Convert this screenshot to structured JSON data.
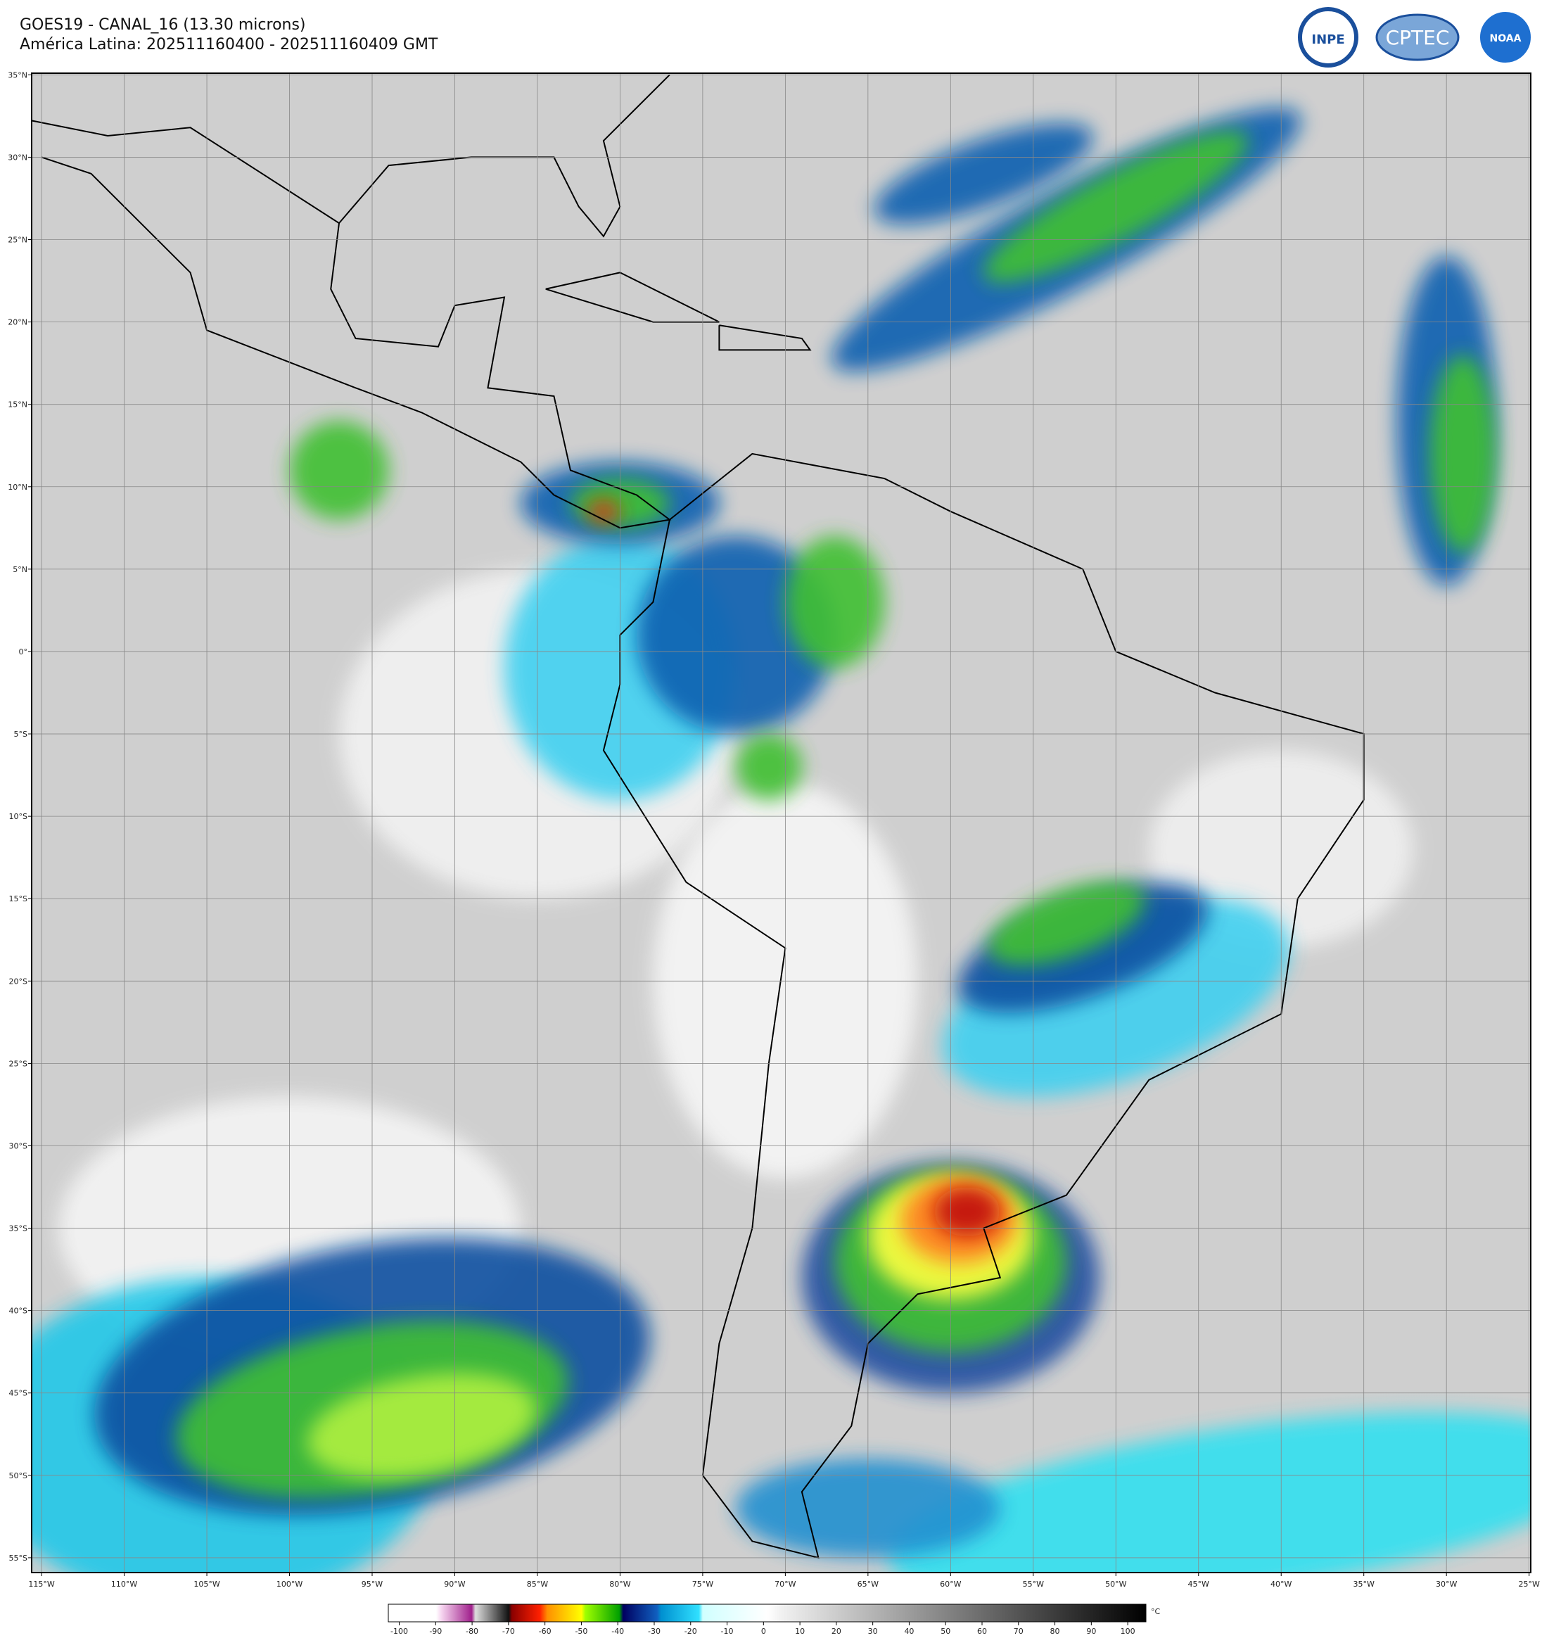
{
  "header": {
    "title": "GOES19 - CANAL_16 (13.30 microns)",
    "subtitle": "América Latina: 202511160400 - 202511160409 GMT"
  },
  "logos": [
    "INPE",
    "CPTEC",
    "NOAA"
  ],
  "map": {
    "xlim": [
      -115.6,
      -24.9
    ],
    "ylim": [
      -55.9,
      35.1
    ],
    "grid": true,
    "xticks": [
      {
        "value": -115,
        "label": "115°W"
      },
      {
        "value": -110,
        "label": "110°W"
      },
      {
        "value": -105,
        "label": "105°W"
      },
      {
        "value": -100,
        "label": "100°W"
      },
      {
        "value": -95,
        "label": "95°W"
      },
      {
        "value": -90,
        "label": "90°W"
      },
      {
        "value": -85,
        "label": "85°W"
      },
      {
        "value": -80,
        "label": "80°W"
      },
      {
        "value": -75,
        "label": "75°W"
      },
      {
        "value": -70,
        "label": "70°W"
      },
      {
        "value": -65,
        "label": "65°W"
      },
      {
        "value": -60,
        "label": "60°W"
      },
      {
        "value": -55,
        "label": "55°W"
      },
      {
        "value": -50,
        "label": "50°W"
      },
      {
        "value": -45,
        "label": "45°W"
      },
      {
        "value": -40,
        "label": "40°W"
      },
      {
        "value": -35,
        "label": "35°W"
      },
      {
        "value": -30,
        "label": "30°W"
      },
      {
        "value": -25,
        "label": "25°W"
      }
    ],
    "yticks": [
      {
        "value": 35,
        "label": "35°N"
      },
      {
        "value": 30,
        "label": "30°N"
      },
      {
        "value": 25,
        "label": "25°N"
      },
      {
        "value": 20,
        "label": "20°N"
      },
      {
        "value": 15,
        "label": "15°N"
      },
      {
        "value": 10,
        "label": "10°N"
      },
      {
        "value": 5,
        "label": "5°N"
      },
      {
        "value": 0,
        "label": "0°"
      },
      {
        "value": -5,
        "label": "5°S"
      },
      {
        "value": -10,
        "label": "10°S"
      },
      {
        "value": -15,
        "label": "15°S"
      },
      {
        "value": -20,
        "label": "20°S"
      },
      {
        "value": -25,
        "label": "25°S"
      },
      {
        "value": -30,
        "label": "30°S"
      },
      {
        "value": -35,
        "label": "35°S"
      },
      {
        "value": -40,
        "label": "40°S"
      },
      {
        "value": -45,
        "label": "45°S"
      },
      {
        "value": -50,
        "label": "50°S"
      },
      {
        "value": -55,
        "label": "55°S"
      }
    ]
  },
  "colorbar": {
    "clim": [
      -103,
      105
    ],
    "ticks": [
      -100,
      -90,
      -80,
      -70,
      -60,
      -50,
      -40,
      -30,
      -20,
      -10,
      0,
      10,
      20,
      30,
      40,
      50,
      60,
      70,
      80,
      90,
      100
    ],
    "unit": "°C"
  }
}
